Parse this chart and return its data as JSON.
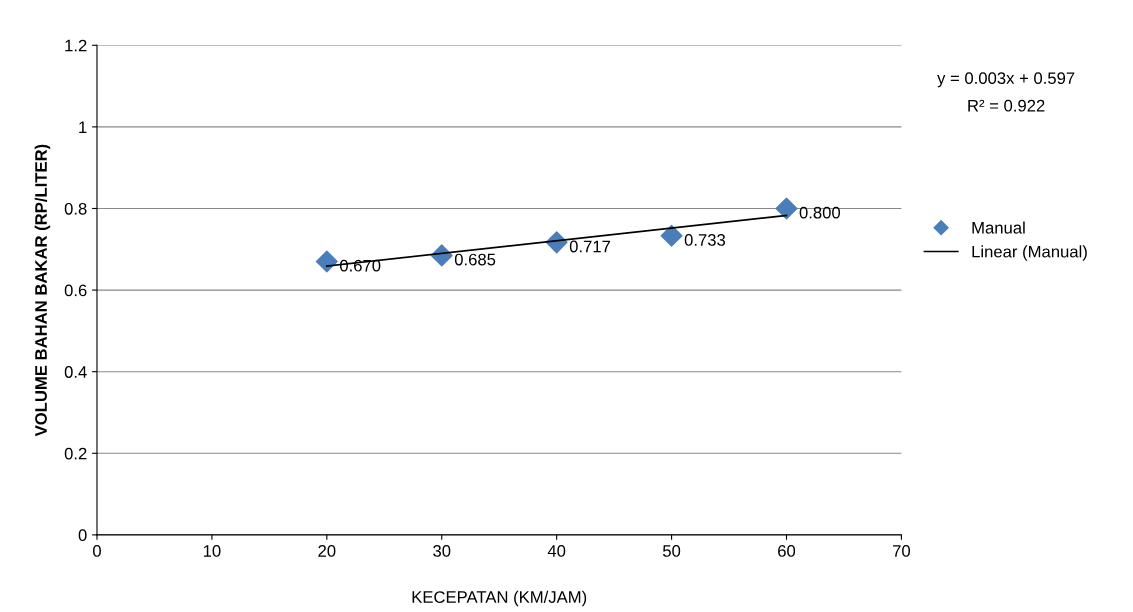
{
  "chart_data": {
    "type": "scatter",
    "xlabel": "KECEPATAN (KM/JAM)",
    "ylabel": "VOLUME BAHAN BAKAR (RP/LITER)",
    "series": [
      {
        "name": "Manual",
        "color": "#4a7ebb",
        "x": [
          20,
          30,
          40,
          50,
          60
        ],
        "values": [
          0.67,
          0.685,
          0.717,
          0.733,
          0.8
        ],
        "value_labels": [
          "0.670",
          "0.685",
          "0.717",
          "0.733",
          "0.800"
        ],
        "marker": "diamond"
      },
      {
        "name": "Linear (Manual)",
        "type": "line",
        "color": "#000000",
        "x": [
          20,
          60
        ],
        "values": [
          0.659,
          0.783
        ],
        "line_style": "solid"
      }
    ],
    "xlim": [
      0,
      70
    ],
    "xticks": [
      0,
      10,
      20,
      30,
      40,
      50,
      60,
      70
    ],
    "ylim": [
      0,
      1.2
    ],
    "yticks": [
      0,
      0.2,
      0.4,
      0.6,
      0.8,
      1,
      1.2
    ],
    "grid": "y",
    "legend": "right",
    "annotations": [
      "y = 0.003x + 0.597",
      "R² = 0.922"
    ]
  }
}
